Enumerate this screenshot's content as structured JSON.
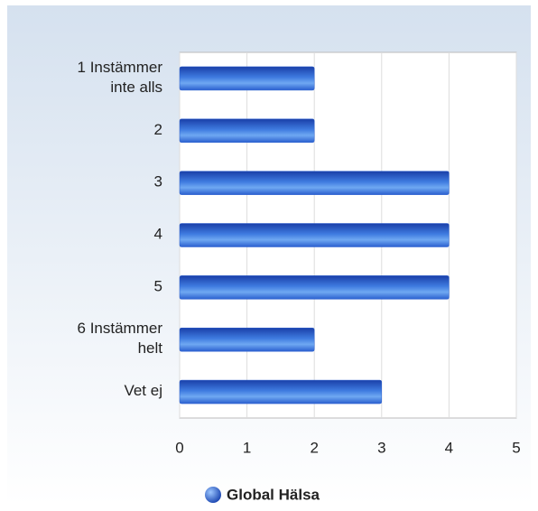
{
  "chart_data": {
    "type": "bar",
    "orientation": "horizontal",
    "categories": [
      [
        "1 Instämmer",
        "inte alls"
      ],
      [
        "2"
      ],
      [
        "3"
      ],
      [
        "4"
      ],
      [
        "5"
      ],
      [
        "6 Instämmer",
        "helt"
      ],
      [
        "Vet ej"
      ]
    ],
    "series": [
      {
        "name": "Global Hälsa",
        "color": "#2a5fcf",
        "values": [
          2,
          2,
          4,
          4,
          4,
          2,
          3
        ]
      }
    ],
    "xlim": [
      0,
      5
    ],
    "xticks": [
      0,
      1,
      2,
      3,
      4,
      5
    ],
    "grid": true,
    "legend": "bottom"
  }
}
